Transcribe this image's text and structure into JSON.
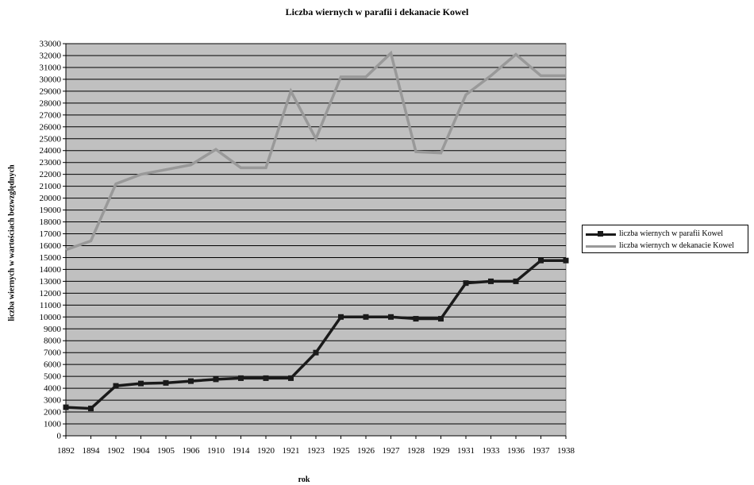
{
  "chart_data": {
    "type": "line",
    "title": "Liczba wiernych w parafii i dekanacie Kowel",
    "xlabel": "rok",
    "ylabel": "liczba wiernych w wartościach bezwzględnych",
    "ylim": [
      0,
      33000
    ],
    "ytick_step": 1000,
    "grid": true,
    "legend_position": "right",
    "plot_background": "#c0c0c0",
    "categories": [
      "1892",
      "1894",
      "1902",
      "1904",
      "1905",
      "1906",
      "1910",
      "1914",
      "1920",
      "1921",
      "1923",
      "1925",
      "1926",
      "1927",
      "1928",
      "1929",
      "1931",
      "1933",
      "1936",
      "1937",
      "1938"
    ],
    "series": [
      {
        "name": "liczba wiernych w parafii Kowel",
        "color": "#1a1a1a",
        "marker": "square",
        "values": [
          2400,
          2300,
          4200,
          4400,
          4450,
          4600,
          4750,
          4850,
          4850,
          4850,
          7000,
          10000,
          10000,
          10000,
          9850,
          9850,
          12850,
          13000,
          13000,
          14750,
          14750
        ]
      },
      {
        "name": "liczba wiernych w dekanacie Kowel",
        "color": "#999999",
        "marker": "none",
        "values": [
          15650,
          16400,
          21200,
          22000,
          22400,
          22800,
          24100,
          22550,
          22550,
          29000,
          25000,
          30200,
          30200,
          32200,
          23900,
          23800,
          28700,
          30300,
          32100,
          30300,
          30300
        ]
      }
    ]
  }
}
